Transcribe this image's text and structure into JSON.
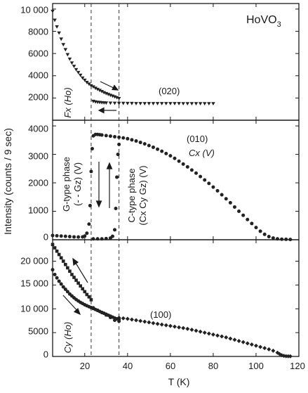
{
  "chart_data": {
    "type": "scatter",
    "xlabel": "T (K)",
    "ylabel": "Intensity (counts / 9 sec)",
    "x_ticks": [
      "20",
      "40",
      "60",
      "80",
      "100",
      "120"
    ],
    "x_range": [
      5,
      120
    ],
    "transition_temperatures_K": [
      23,
      36
    ],
    "panels": [
      {
        "id": "top",
        "ylim": [
          0,
          10500
        ],
        "y_ticks": [
          "10 000",
          "8000",
          "6000",
          "4000",
          "2000"
        ],
        "y_tick_values": [
          10000,
          8000,
          6000,
          4000,
          2000
        ],
        "compound_label": "HoVO",
        "compound_subscript": "3",
        "reflection_label": "(020)",
        "order_label": "Fx (Ho)",
        "series": [
          {
            "marker": "triangle",
            "x": [
              5,
              6,
              7,
              8,
              9,
              10,
              11,
              12,
              13,
              14,
              15,
              16,
              17,
              18,
              19,
              20,
              21,
              22,
              23,
              24,
              25,
              26,
              27,
              28,
              29,
              30,
              31,
              32,
              33,
              34,
              35,
              36
            ],
            "y": [
              9800,
              9000,
              8400,
              7850,
              7300,
              6800,
              6350,
              5900,
              5500,
              5150,
              4850,
              4550,
              4300,
              4050,
              3800,
              3600,
              3400,
              3250,
              3100,
              3000,
              2880,
              2780,
              2680,
              2580,
              2480,
              2400,
              2320,
              2240,
              2170,
              2100,
              2030,
              1960
            ]
          },
          {
            "marker": "triangle",
            "x": [
              24,
              25,
              26,
              27,
              28,
              29,
              30,
              32,
              34,
              36,
              38,
              40,
              42,
              44,
              46,
              48,
              50,
              52,
              54,
              56,
              58,
              60,
              62,
              64,
              66,
              68,
              70,
              72,
              74,
              76,
              78,
              80
            ],
            "y": [
              1700,
              1650,
              1620,
              1600,
              1580,
              1560,
              1550,
              1540,
              1530,
              1520,
              1520,
              1510,
              1510,
              1500,
              1500,
              1500,
              1500,
              1500,
              1500,
              1500,
              1500,
              1500,
              1500,
              1500,
              1490,
              1490,
              1490,
              1490,
              1490,
              1490,
              1490,
              1490
            ]
          }
        ]
      },
      {
        "id": "middle",
        "ylim": [
          0,
          4200
        ],
        "y_ticks": [
          "4000",
          "3000",
          "2000",
          "1000",
          "0"
        ],
        "y_tick_values": [
          4000,
          3000,
          2000,
          1000,
          0
        ],
        "reflection_label": "(010)",
        "order_label": "Cx (V)",
        "g_phase_label_1": "G-type phase",
        "g_phase_label_2": "(- - Gz) (V)",
        "c_phase_label_1": "C-type phase",
        "c_phase_label_2": "(Cx Cy Gz) (V)",
        "series": [
          {
            "marker": "circle",
            "x": [
              5,
              7,
              9,
              11,
              13,
              15,
              17,
              19,
              20,
              21,
              22,
              22.5,
              23,
              23.5,
              24,
              25,
              26,
              27,
              28,
              30,
              32,
              34,
              36,
              38,
              40,
              42,
              44,
              46,
              48,
              50,
              52,
              54,
              56,
              58,
              60,
              62,
              64,
              66,
              68,
              70,
              72,
              74,
              76,
              78,
              80,
              82,
              84,
              86,
              88,
              90,
              92,
              94,
              96,
              98,
              100,
              102,
              104,
              106,
              108,
              110,
              112,
              114,
              116
            ],
            "y": [
              150,
              140,
              130,
              120,
              110,
              100,
              95,
              100,
              130,
              230,
              550,
              1200,
              2400,
              3200,
              3650,
              3700,
              3700,
              3690,
              3680,
              3660,
              3640,
              3620,
              3600,
              3580,
              3550,
              3510,
              3470,
              3420,
              3370,
              3310,
              3250,
              3180,
              3110,
              3030,
              2950,
              2860,
              2760,
              2660,
              2560,
              2450,
              2340,
              2220,
              2100,
              1980,
              1850,
              1720,
              1580,
              1440,
              1300,
              1150,
              1000,
              860,
              710,
              570,
              430,
              300,
              190,
              110,
              60,
              30,
              20,
              15,
              10
            ]
          },
          {
            "marker": "circle",
            "x": [
              24,
              26,
              28,
              30,
              32,
              33,
              34,
              34.5,
              35,
              35.5,
              36
            ],
            "y": [
              30,
              30,
              30,
              40,
              60,
              120,
              350,
              1100,
              2200,
              3000,
              3350
            ]
          }
        ]
      },
      {
        "id": "bottom",
        "ylim": [
          0,
          24500
        ],
        "y_ticks": [
          "20 000",
          "15 000",
          "10 000",
          "5000",
          "0"
        ],
        "y_tick_values": [
          20000,
          15000,
          10000,
          5000,
          0
        ],
        "reflection_label": "(100)",
        "order_label": "Cy (Ho)",
        "series": [
          {
            "marker": "square",
            "x": [
              5,
              6,
              7,
              8,
              9,
              10,
              11,
              12,
              13,
              14,
              15,
              16,
              17,
              18,
              19,
              20,
              21,
              22,
              23
            ],
            "y": [
              23500,
              22800,
              22100,
              21400,
              20700,
              20000,
              19300,
              18600,
              17900,
              17200,
              16600,
              16000,
              15400,
              14800,
              14200,
              13600,
              13000,
              12500,
              11900
            ]
          },
          {
            "marker": "circle",
            "x": [
              5,
              6,
              7,
              8,
              9,
              10,
              11,
              12,
              13,
              14,
              15,
              16,
              17,
              18,
              19,
              20,
              21,
              22,
              23,
              24,
              25,
              26,
              27,
              28,
              29,
              30,
              31,
              32,
              33,
              34,
              35,
              36
            ],
            "y": [
              18200,
              17200,
              16500,
              15800,
              15200,
              14600,
              14100,
              13600,
              13100,
              12700,
              12300,
              11950,
              11650,
              11350,
              11100,
              10850,
              10650,
              10450,
              10250,
              10050,
              9850,
              9650,
              9450,
              9250,
              9050,
              8850,
              8650,
              8450,
              8250,
              8050,
              7900,
              7800
            ]
          },
          {
            "marker": "circle",
            "x": [
              24,
              26,
              28,
              30,
              32,
              34,
              36
            ],
            "y": [
              10200,
              9700,
              9200,
              8700,
              8200,
              7600,
              7400
            ]
          },
          {
            "marker": "diamond",
            "x": [
              36,
              38,
              40,
              42,
              44,
              46,
              48,
              50,
              52,
              54,
              56,
              58,
              60,
              62,
              64,
              66,
              68,
              70,
              72,
              74,
              76,
              78,
              80,
              82,
              84,
              86,
              88,
              90,
              92,
              94,
              96,
              98,
              100,
              102,
              104,
              106,
              108,
              110,
              111,
              112,
              113,
              114,
              115,
              116
            ],
            "y": [
              8100,
              8000,
              7900,
              7750,
              7600,
              7450,
              7300,
              7150,
              7000,
              6850,
              6700,
              6550,
              6400,
              6250,
              6100,
              5950,
              5800,
              5600,
              5400,
              5200,
              5000,
              4800,
              4600,
              4400,
              4200,
              4000,
              3750,
              3500,
              3250,
              3000,
              2750,
              2500,
              2250,
              2000,
              1750,
              1500,
              1200,
              800,
              500,
              250,
              120,
              60,
              40,
              30
            ]
          }
        ]
      }
    ]
  }
}
